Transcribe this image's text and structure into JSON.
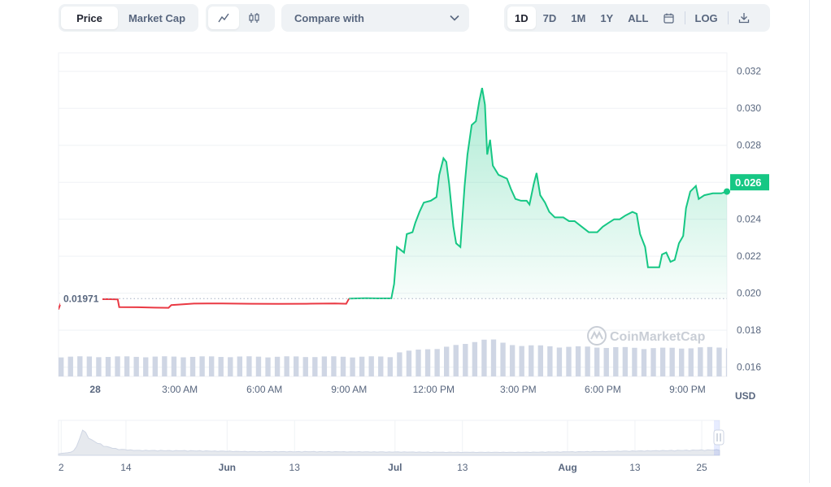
{
  "toolbar": {
    "price_label": "Price",
    "marketcap_label": "Market Cap",
    "compare_label": "Compare with",
    "range": [
      "1D",
      "7D",
      "1M",
      "1Y",
      "ALL"
    ],
    "active_range": "1D",
    "log_label": "LOG",
    "icons": [
      "line-chart-icon",
      "candlestick-icon",
      "chevron-down-icon",
      "calendar-icon",
      "download-icon"
    ]
  },
  "colors": {
    "up": "#16c784",
    "down": "#ea3943",
    "axis_text": "#58667e",
    "grid": "#eff2f5"
  },
  "chart_data": {
    "type": "line",
    "title": "",
    "xlabel": "",
    "ylabel": "",
    "currency_label": "USD",
    "watermark": "CoinMarketCap",
    "reference_value": 0.01971,
    "reference_label": "0.01971",
    "last_value": 0.026,
    "last_label": "0.026",
    "ylim": [
      0.0155,
      0.033
    ],
    "yticks": [
      0.016,
      0.018,
      0.02,
      0.022,
      0.024,
      0.026,
      0.028,
      0.03,
      0.032
    ],
    "ytick_labels": [
      "0.016",
      "0.018",
      "0.020",
      "0.022",
      "0.024",
      "0.026",
      "0.028",
      "0.030",
      "0.032"
    ],
    "xlim_hours": [
      -1.3,
      22.4
    ],
    "x_unit": "hours from midnight",
    "xticks": [
      {
        "h": 0,
        "label": "28"
      },
      {
        "h": 3,
        "label": "3:00 AM"
      },
      {
        "h": 6,
        "label": "6:00 AM"
      },
      {
        "h": 9,
        "label": "9:00 AM"
      },
      {
        "h": 12,
        "label": "12:00 PM"
      },
      {
        "h": 15,
        "label": "3:00 PM"
      },
      {
        "h": 18,
        "label": "6:00 PM"
      },
      {
        "h": 21,
        "label": "9:00 PM"
      }
    ],
    "grid": true,
    "series": [
      {
        "values": [
          [
            -1.7,
            0.01912
          ],
          [
            -1.3,
            0.01915
          ],
          [
            -1.2,
            0.01955
          ],
          [
            -0.8,
            0.01958
          ],
          [
            -0.2,
            0.01967
          ],
          [
            0.4,
            0.01968
          ],
          [
            0.8,
            0.01967
          ],
          [
            0.85,
            0.01925
          ],
          [
            1.5,
            0.01924
          ],
          [
            2.1,
            0.01922
          ],
          [
            2.6,
            0.01921
          ],
          [
            2.7,
            0.01936
          ],
          [
            3.5,
            0.01944
          ],
          [
            4.5,
            0.01945
          ],
          [
            5.5,
            0.01943
          ],
          [
            6.5,
            0.01942
          ],
          [
            7.5,
            0.01943
          ],
          [
            8.5,
            0.01945
          ],
          [
            8.9,
            0.01943
          ],
          [
            9.0,
            0.01971
          ],
          [
            9.6,
            0.01973
          ],
          [
            10.0,
            0.01972
          ],
          [
            10.5,
            0.01972
          ],
          [
            10.6,
            0.0205
          ],
          [
            10.7,
            0.0225
          ],
          [
            10.95,
            0.0222
          ],
          [
            11.05,
            0.0232
          ],
          [
            11.25,
            0.0233
          ],
          [
            11.35,
            0.0238
          ],
          [
            11.5,
            0.0244
          ],
          [
            11.65,
            0.0249
          ],
          [
            11.9,
            0.025
          ],
          [
            12.1,
            0.0252
          ],
          [
            12.2,
            0.0264
          ],
          [
            12.35,
            0.0273
          ],
          [
            12.45,
            0.0271
          ],
          [
            12.55,
            0.0259
          ],
          [
            12.7,
            0.0236
          ],
          [
            12.8,
            0.0227
          ],
          [
            12.95,
            0.0225
          ],
          [
            13.1,
            0.0258
          ],
          [
            13.2,
            0.0275
          ],
          [
            13.35,
            0.0291
          ],
          [
            13.5,
            0.0293
          ],
          [
            13.62,
            0.0304
          ],
          [
            13.72,
            0.0311
          ],
          [
            13.82,
            0.0302
          ],
          [
            13.9,
            0.0275
          ],
          [
            14.0,
            0.0283
          ],
          [
            14.1,
            0.0269
          ],
          [
            14.3,
            0.0264
          ],
          [
            14.6,
            0.0262
          ],
          [
            14.75,
            0.0256
          ],
          [
            14.9,
            0.0251
          ],
          [
            15.1,
            0.025
          ],
          [
            15.3,
            0.025
          ],
          [
            15.4,
            0.0248
          ],
          [
            15.55,
            0.0259
          ],
          [
            15.65,
            0.0265
          ],
          [
            15.78,
            0.0253
          ],
          [
            15.95,
            0.0249
          ],
          [
            16.1,
            0.0244
          ],
          [
            16.3,
            0.0241
          ],
          [
            16.6,
            0.0241
          ],
          [
            16.8,
            0.0239
          ],
          [
            17.0,
            0.0239
          ],
          [
            17.25,
            0.0236
          ],
          [
            17.5,
            0.0233
          ],
          [
            17.8,
            0.0233
          ],
          [
            18.0,
            0.0236
          ],
          [
            18.2,
            0.0238
          ],
          [
            18.4,
            0.024
          ],
          [
            18.6,
            0.024
          ],
          [
            18.8,
            0.0242
          ],
          [
            19.05,
            0.0244
          ],
          [
            19.2,
            0.0243
          ],
          [
            19.32,
            0.0232
          ],
          [
            19.5,
            0.0225
          ],
          [
            19.6,
            0.0214
          ],
          [
            19.85,
            0.0214
          ],
          [
            20.0,
            0.0214
          ],
          [
            20.1,
            0.0221
          ],
          [
            20.25,
            0.0222
          ],
          [
            20.4,
            0.0217
          ],
          [
            20.55,
            0.0218
          ],
          [
            20.7,
            0.0227
          ],
          [
            20.85,
            0.0231
          ],
          [
            20.95,
            0.0246
          ],
          [
            21.1,
            0.0255
          ],
          [
            21.3,
            0.0258
          ],
          [
            21.4,
            0.0251
          ],
          [
            21.6,
            0.0253
          ],
          [
            21.9,
            0.0254
          ],
          [
            22.2,
            0.0254
          ],
          [
            22.4,
            0.0255
          ]
        ]
      }
    ],
    "volume": {
      "ylim": [
        0,
        1
      ],
      "bars_per_hour": 3,
      "profile": [
        [
          -1.7,
          0.42
        ],
        [
          10.5,
          0.42
        ],
        [
          10.7,
          0.52
        ],
        [
          12.0,
          0.6
        ],
        [
          13.0,
          0.68
        ],
        [
          13.5,
          0.78
        ],
        [
          13.9,
          0.8
        ],
        [
          14.5,
          0.68
        ],
        [
          16.0,
          0.64
        ],
        [
          18.0,
          0.62
        ],
        [
          20.0,
          0.6
        ],
        [
          22.4,
          0.62
        ]
      ]
    },
    "navigator": {
      "labels": [
        {
          "pos": 0.004,
          "label": "2"
        },
        {
          "pos": 0.102,
          "label": "14"
        },
        {
          "pos": 0.255,
          "label": "Jun"
        },
        {
          "pos": 0.357,
          "label": "13"
        },
        {
          "pos": 0.509,
          "label": "Jul"
        },
        {
          "pos": 0.611,
          "label": "13"
        },
        {
          "pos": 0.77,
          "label": "Aug"
        },
        {
          "pos": 0.872,
          "label": "13"
        },
        {
          "pos": 0.973,
          "label": "25"
        }
      ],
      "profile": [
        [
          0,
          0.05
        ],
        [
          0.02,
          0.1
        ],
        [
          0.03,
          0.35
        ],
        [
          0.035,
          0.9
        ],
        [
          0.04,
          0.75
        ],
        [
          0.05,
          0.5
        ],
        [
          0.07,
          0.3
        ],
        [
          0.09,
          0.2
        ],
        [
          0.12,
          0.16
        ],
        [
          0.2,
          0.15
        ],
        [
          0.3,
          0.12
        ],
        [
          0.4,
          0.12
        ],
        [
          0.5,
          0.11
        ],
        [
          0.6,
          0.1
        ],
        [
          0.7,
          0.1
        ],
        [
          0.8,
          0.12
        ],
        [
          0.9,
          0.15
        ],
        [
          1.0,
          0.18
        ]
      ]
    }
  }
}
